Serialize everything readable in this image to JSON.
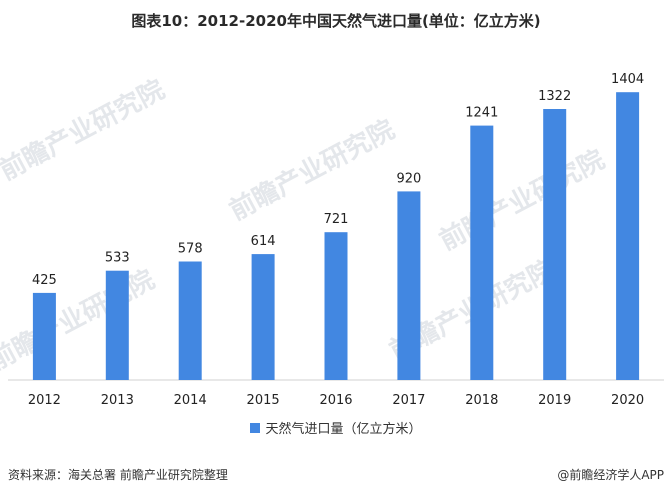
{
  "title": "图表10：2012-2020年中国天然气进口量(单位：亿立方米)",
  "chart_data": {
    "type": "bar",
    "categories": [
      "2012",
      "2013",
      "2014",
      "2015",
      "2016",
      "2017",
      "2018",
      "2019",
      "2020"
    ],
    "series": [
      {
        "name": "天然气进口量（亿立方米）",
        "values": [
          425,
          533,
          578,
          614,
          721,
          920,
          1241,
          1322,
          1404
        ]
      }
    ],
    "ylim": [
      0,
      1600
    ],
    "grid": false,
    "legend_position": "bottom",
    "bar_color": "#4287e1",
    "axis_color": "#d0d0d0"
  },
  "footer": {
    "source": "资料来源：海关总署 前瞻产业研究院整理",
    "brand": "@前瞻经济学人APP"
  },
  "watermark": "前瞻产业研究院"
}
